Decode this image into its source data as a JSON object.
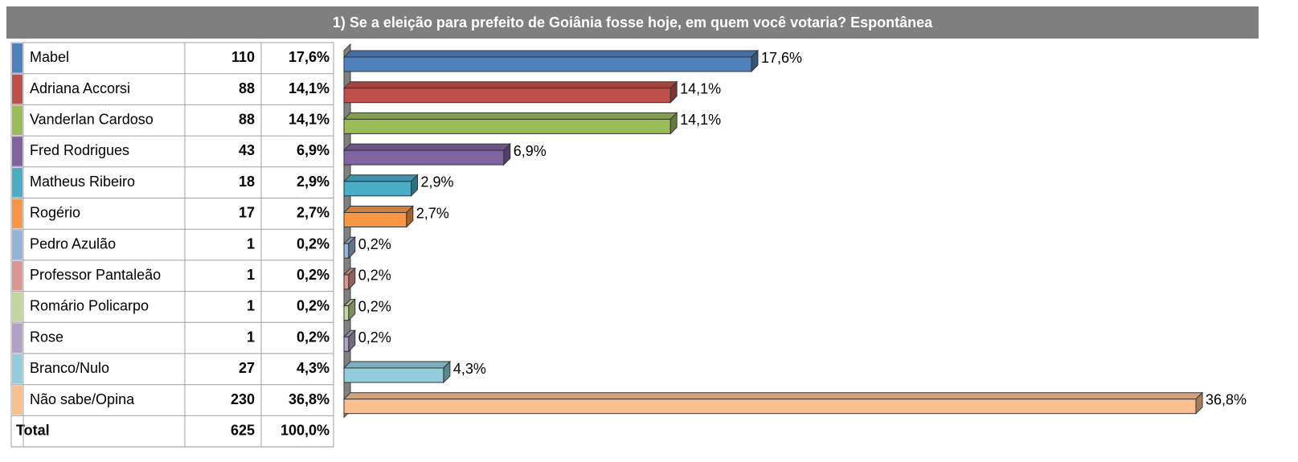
{
  "chart_data": {
    "type": "bar",
    "title": "1) Se a eleição para prefeito de Goiânia fosse hoje, em quem você votaria? Espontânea",
    "categories": [
      "Mabel",
      "Adriana Accorsi",
      "Vanderlan Cardoso",
      "Fred Rodrigues",
      "Matheus Ribeiro",
      "Rogério",
      "Pedro Azulão",
      "Professor Pantaleão",
      "Romário Policarpo",
      "Rose",
      "Branco/Nulo",
      "Não sabe/Opina"
    ],
    "colors": [
      "#4f81bd",
      "#c0504d",
      "#9bbb59",
      "#8064a2",
      "#4bacc6",
      "#f79646",
      "#95b3d7",
      "#d99694",
      "#c3d69b",
      "#b2a1c7",
      "#92cddc",
      "#fac090"
    ],
    "counts": [
      110,
      88,
      88,
      43,
      18,
      17,
      1,
      1,
      1,
      1,
      27,
      230
    ],
    "values": [
      17.6,
      14.1,
      14.1,
      6.9,
      2.9,
      2.7,
      0.2,
      0.2,
      0.2,
      0.2,
      4.3,
      36.8
    ],
    "value_labels": [
      "17,6%",
      "14,1%",
      "14,1%",
      "6,9%",
      "2,9%",
      "2,7%",
      "0,2%",
      "0,2%",
      "0,2%",
      "0,2%",
      "4,3%",
      "36,8%"
    ],
    "total_label": "Total",
    "total_count": 625,
    "total_value": 100,
    "total_value_label": "100,0%"
  }
}
